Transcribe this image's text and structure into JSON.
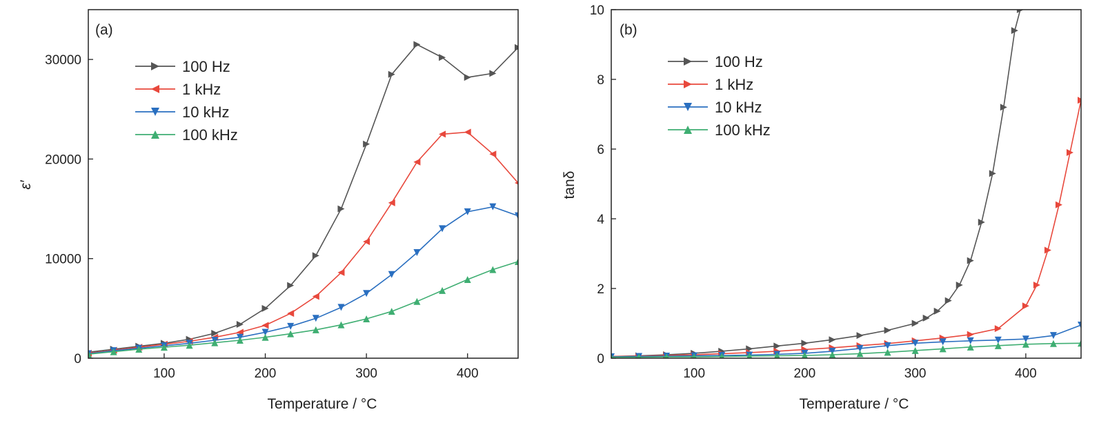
{
  "colors": {
    "100 Hz": "#555555",
    "1 kHz": "#e8483c",
    "10 kHz": "#2a6fc0",
    "100 kHz": "#3fae72"
  },
  "chart_data": [
    {
      "type": "line",
      "panel_label": "(a)",
      "xlabel": "Temperature / °C",
      "ylabel": "ε′",
      "xlim": [
        25,
        450
      ],
      "ylim": [
        0,
        35000
      ],
      "xticks": [
        100,
        200,
        300,
        400
      ],
      "yticks": [
        0,
        10000,
        20000,
        30000
      ],
      "xtick_labels": [
        "100",
        "200",
        "300",
        "400"
      ],
      "ytick_labels": [
        "0",
        "10000",
        "20000",
        "30000"
      ],
      "grid": false,
      "legend_position": "top-left",
      "series": [
        {
          "name": "100 Hz",
          "marker": "triangle-right",
          "x": [
            25,
            50,
            75,
            100,
            125,
            150,
            175,
            200,
            225,
            250,
            275,
            300,
            325,
            350,
            375,
            400,
            425,
            450
          ],
          "y": [
            600,
            900,
            1200,
            1500,
            1900,
            2500,
            3400,
            5000,
            7300,
            10300,
            15000,
            21500,
            28500,
            31500,
            30200,
            28200,
            28600,
            31200
          ]
        },
        {
          "name": "1 kHz",
          "marker": "triangle-left",
          "x": [
            25,
            50,
            75,
            100,
            125,
            150,
            175,
            200,
            225,
            250,
            275,
            300,
            325,
            350,
            375,
            400,
            425,
            450
          ],
          "y": [
            500,
            800,
            1100,
            1400,
            1700,
            2100,
            2600,
            3300,
            4500,
            6200,
            8600,
            11700,
            15600,
            19700,
            22500,
            22700,
            20500,
            17600
          ]
        },
        {
          "name": "10 kHz",
          "marker": "triangle-down",
          "x": [
            25,
            50,
            75,
            100,
            125,
            150,
            175,
            200,
            225,
            250,
            275,
            300,
            325,
            350,
            375,
            400,
            425,
            450
          ],
          "y": [
            450,
            750,
            1000,
            1250,
            1500,
            1800,
            2100,
            2600,
            3200,
            4000,
            5100,
            6500,
            8400,
            10600,
            13000,
            14700,
            15200,
            14300
          ]
        },
        {
          "name": "100 kHz",
          "marker": "triangle-up",
          "x": [
            25,
            50,
            75,
            100,
            125,
            150,
            175,
            200,
            225,
            250,
            275,
            300,
            325,
            350,
            375,
            400,
            425,
            450
          ],
          "y": [
            400,
            650,
            900,
            1100,
            1300,
            1550,
            1800,
            2100,
            2450,
            2850,
            3350,
            3950,
            4700,
            5700,
            6800,
            7900,
            8900,
            9700
          ]
        }
      ]
    },
    {
      "type": "line",
      "panel_label": "(b)",
      "xlabel": "Temperature / °C",
      "ylabel": "tanδ",
      "xlim": [
        25,
        450
      ],
      "ylim": [
        0,
        10
      ],
      "xticks": [
        100,
        200,
        300,
        400
      ],
      "yticks": [
        0,
        2,
        4,
        6,
        8,
        10
      ],
      "xtick_labels": [
        "100",
        "200",
        "300",
        "400"
      ],
      "ytick_labels": [
        "0",
        "2",
        "4",
        "6",
        "8",
        "10"
      ],
      "grid": false,
      "legend_position": "top-left",
      "series": [
        {
          "name": "100 Hz",
          "marker": "triangle-right",
          "x": [
            25,
            50,
            75,
            100,
            125,
            150,
            175,
            200,
            225,
            250,
            275,
            300,
            310,
            320,
            330,
            340,
            350,
            360,
            370,
            380,
            390,
            395
          ],
          "y": [
            0.05,
            0.07,
            0.1,
            0.14,
            0.2,
            0.27,
            0.35,
            0.43,
            0.53,
            0.65,
            0.8,
            1.0,
            1.15,
            1.35,
            1.65,
            2.1,
            2.8,
            3.9,
            5.3,
            7.2,
            9.4,
            10.0
          ]
        },
        {
          "name": "1 kHz",
          "marker": "triangle-right",
          "x": [
            25,
            50,
            75,
            100,
            125,
            150,
            175,
            200,
            225,
            250,
            275,
            300,
            325,
            350,
            375,
            400,
            410,
            420,
            430,
            440,
            450
          ],
          "y": [
            0.05,
            0.06,
            0.08,
            0.1,
            0.13,
            0.16,
            0.2,
            0.25,
            0.3,
            0.36,
            0.42,
            0.5,
            0.58,
            0.68,
            0.85,
            1.5,
            2.1,
            3.1,
            4.4,
            5.9,
            7.4
          ]
        },
        {
          "name": "10 kHz",
          "marker": "triangle-down",
          "x": [
            25,
            50,
            75,
            100,
            125,
            150,
            175,
            200,
            225,
            250,
            275,
            300,
            325,
            350,
            375,
            400,
            425,
            450
          ],
          "y": [
            0.04,
            0.05,
            0.06,
            0.07,
            0.08,
            0.09,
            0.11,
            0.14,
            0.2,
            0.28,
            0.36,
            0.43,
            0.47,
            0.5,
            0.52,
            0.55,
            0.65,
            0.95
          ]
        },
        {
          "name": "100 kHz",
          "marker": "triangle-up",
          "x": [
            25,
            50,
            75,
            100,
            125,
            150,
            175,
            200,
            225,
            250,
            275,
            300,
            325,
            350,
            375,
            400,
            425,
            450
          ],
          "y": [
            0.03,
            0.03,
            0.04,
            0.04,
            0.05,
            0.06,
            0.07,
            0.08,
            0.1,
            0.13,
            0.17,
            0.22,
            0.27,
            0.32,
            0.36,
            0.4,
            0.42,
            0.43
          ]
        }
      ]
    }
  ]
}
